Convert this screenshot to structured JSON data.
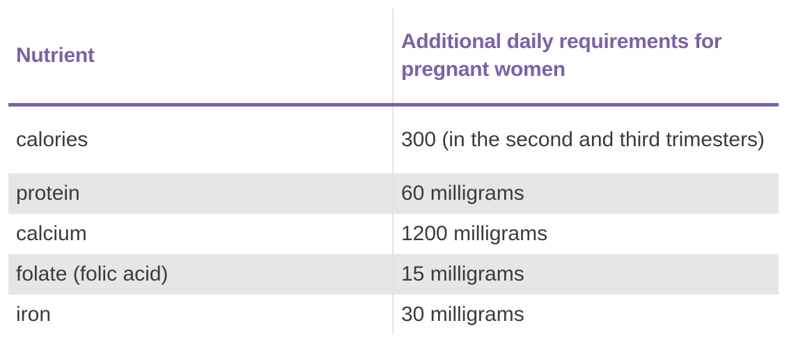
{
  "table": {
    "headers": [
      "Nutrient",
      "Additional daily requirements for pregnant women"
    ],
    "rows": [
      [
        "calories",
        "300 (in the second and third trimesters)"
      ],
      [
        "protein",
        "60 milligrams"
      ],
      [
        "calcium",
        "1200 milligrams"
      ],
      [
        "folate (folic acid)",
        "15 milligrams"
      ],
      [
        "iron",
        "30 milligrams"
      ]
    ]
  },
  "colors": {
    "header_text": "#7b62a8",
    "header_rule": "#7b62a8",
    "body_text": "#3b3b3b",
    "stripe": "#e6e6e6",
    "column_divider": "#e3e3e3"
  }
}
